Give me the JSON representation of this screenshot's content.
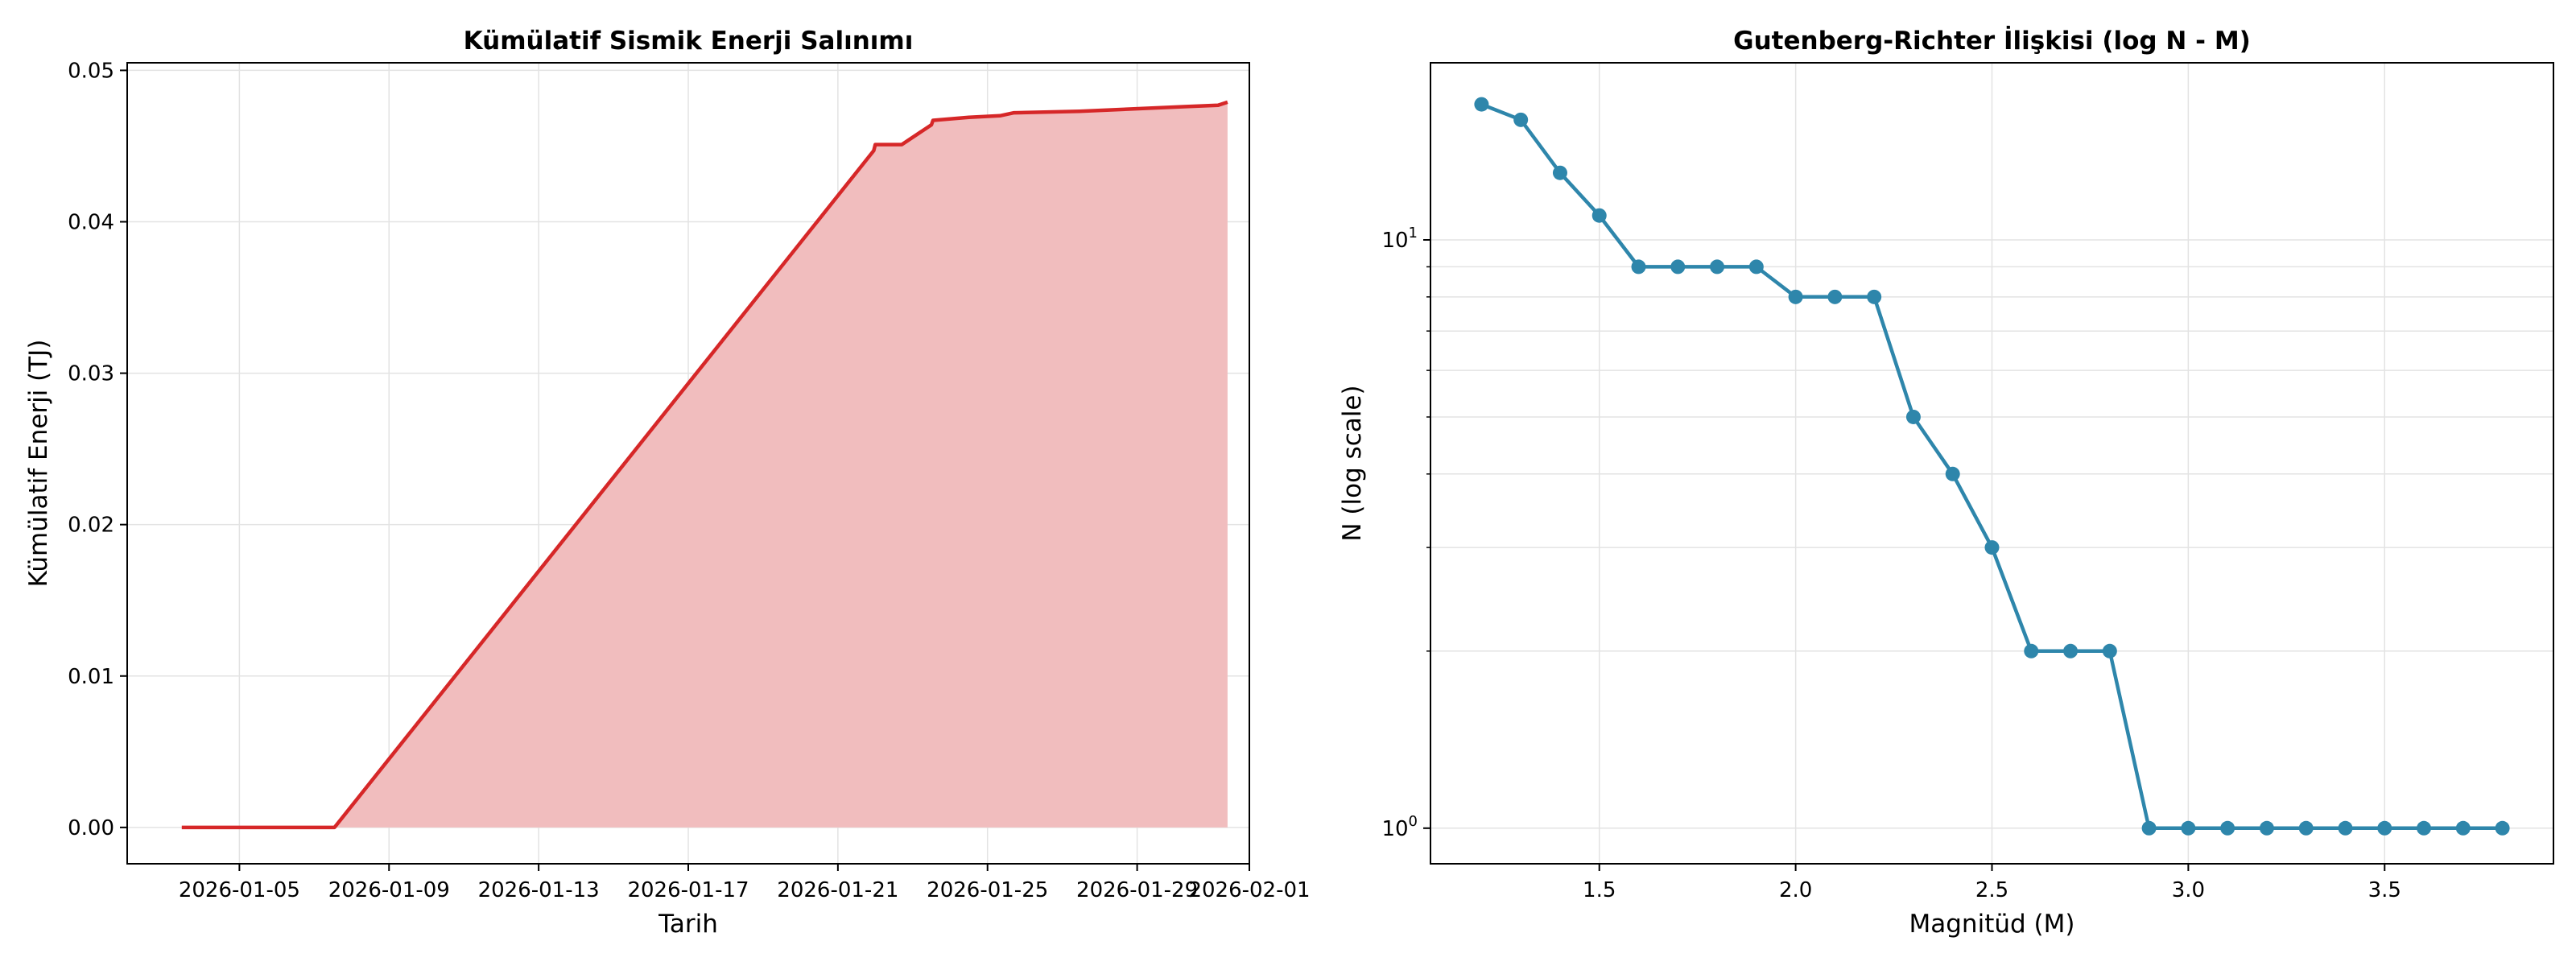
{
  "chart_data": [
    {
      "type": "area",
      "title": "Kümülatif Sismik Enerji Salınımı",
      "xlabel": "Tarih",
      "ylabel": "Kümülatif Enerji (TJ)",
      "x_ticks": [
        "2026-01-05",
        "2026-01-09",
        "2026-01-13",
        "2026-01-17",
        "2026-01-21",
        "2026-01-25",
        "2026-01-29",
        "2026-02-01"
      ],
      "y_ticks": [
        "0.00",
        "0.01",
        "0.02",
        "0.03",
        "0.04",
        "0.05"
      ],
      "xlim": [
        "2026-01-02",
        "2026-02-01"
      ],
      "ylim": [
        -0.0024,
        0.0505
      ],
      "grid": true,
      "line_color": "#d62728",
      "fill_color": "#f1bdbe",
      "points": [
        {
          "x": "2026-01-03T11:00",
          "y": 0.0
        },
        {
          "x": "2026-01-07T13:00",
          "y": 0.0
        },
        {
          "x": "2026-01-21T23:00",
          "y": 0.0447
        },
        {
          "x": "2026-01-22T00:00",
          "y": 0.0451
        },
        {
          "x": "2026-01-22T17:00",
          "y": 0.0451
        },
        {
          "x": "2026-01-23T12:00",
          "y": 0.0464
        },
        {
          "x": "2026-01-23T13:00",
          "y": 0.0467
        },
        {
          "x": "2026-01-24T12:00",
          "y": 0.0469
        },
        {
          "x": "2026-01-25T08:00",
          "y": 0.047
        },
        {
          "x": "2026-01-25T17:00",
          "y": 0.0472
        },
        {
          "x": "2026-01-27T11:00",
          "y": 0.0473
        },
        {
          "x": "2026-01-30T06:00",
          "y": 0.0476
        },
        {
          "x": "2026-01-31T04:00",
          "y": 0.0477
        },
        {
          "x": "2026-01-31T10:00",
          "y": 0.0479
        }
      ]
    },
    {
      "type": "line",
      "title": "Gutenberg-Richter İlişkisi (log N - M)",
      "xlabel": "Magnitüd (M)",
      "ylabel": "N (log scale)",
      "x_ticks": [
        "1.5",
        "2.0",
        "2.5",
        "3.0",
        "3.5"
      ],
      "y_ticks": [
        "10^0",
        "10^1"
      ],
      "xlim": [
        1.07,
        3.93
      ],
      "ylim": [
        0.87,
        20.0
      ],
      "log_y": true,
      "grid": true,
      "line_color": "#2e86ab",
      "x": [
        1.2,
        1.3,
        1.4,
        1.5,
        1.6,
        1.7,
        1.8,
        1.9,
        2.0,
        2.1,
        2.2,
        2.3,
        2.4,
        2.5,
        2.6,
        2.7,
        2.8,
        2.9,
        3.0,
        3.1,
        3.2,
        3.3,
        3.4,
        3.5,
        3.6,
        3.7,
        3.8
      ],
      "y": [
        17,
        16,
        13,
        11,
        9,
        9,
        9,
        9,
        8,
        8,
        8,
        5,
        4,
        3,
        2,
        2,
        2,
        1,
        1,
        1,
        1,
        1,
        1,
        1,
        1,
        1,
        1
      ]
    }
  ]
}
